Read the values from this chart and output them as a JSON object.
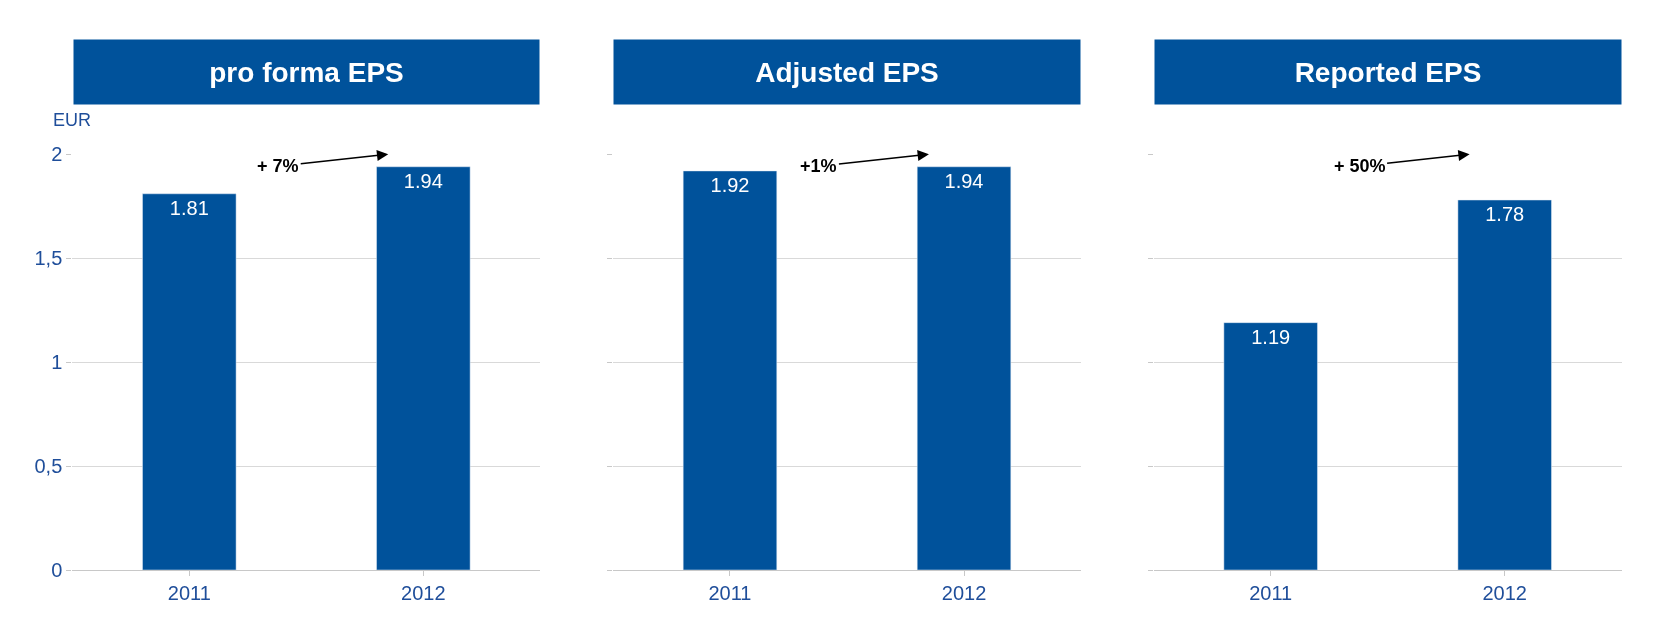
{
  "chart_data": [
    {
      "type": "bar",
      "title": "pro forma EPS",
      "ylabel": "EUR",
      "categories": [
        "2011",
        "2012"
      ],
      "values": [
        1.81,
        1.94
      ],
      "color": "#00529b",
      "ylim": [
        0,
        2
      ],
      "yticks": [
        0,
        {
          "value": 0.5,
          "label": "0,5"
        },
        1,
        {
          "value": 1.5,
          "label": "1,5"
        },
        2
      ],
      "grid": "y",
      "data_labels": true,
      "annotations": [
        "+ 7%"
      ]
    },
    {
      "type": "bar",
      "title": "Adjusted EPS",
      "categories": [
        "2011",
        "2012"
      ],
      "values": [
        1.92,
        1.94
      ],
      "color": "#00529b",
      "ylim": [
        0,
        2
      ],
      "yticks": [
        0,
        0.5,
        1,
        1.5,
        2
      ],
      "grid": "y",
      "data_labels": true,
      "annotations": [
        "+1%"
      ],
      "tick_labels": "x"
    },
    {
      "type": "bar",
      "title": "Reported EPS",
      "categories": [
        "2011",
        "2012"
      ],
      "values": [
        1.19,
        1.78
      ],
      "color": "#00529b",
      "ylim": [
        0,
        2
      ],
      "yticks": [
        0,
        0.5,
        1,
        1.5,
        2
      ],
      "grid": "y",
      "data_labels": true,
      "annotations": [
        "+ 50%"
      ],
      "tick_labels": "x"
    }
  ]
}
